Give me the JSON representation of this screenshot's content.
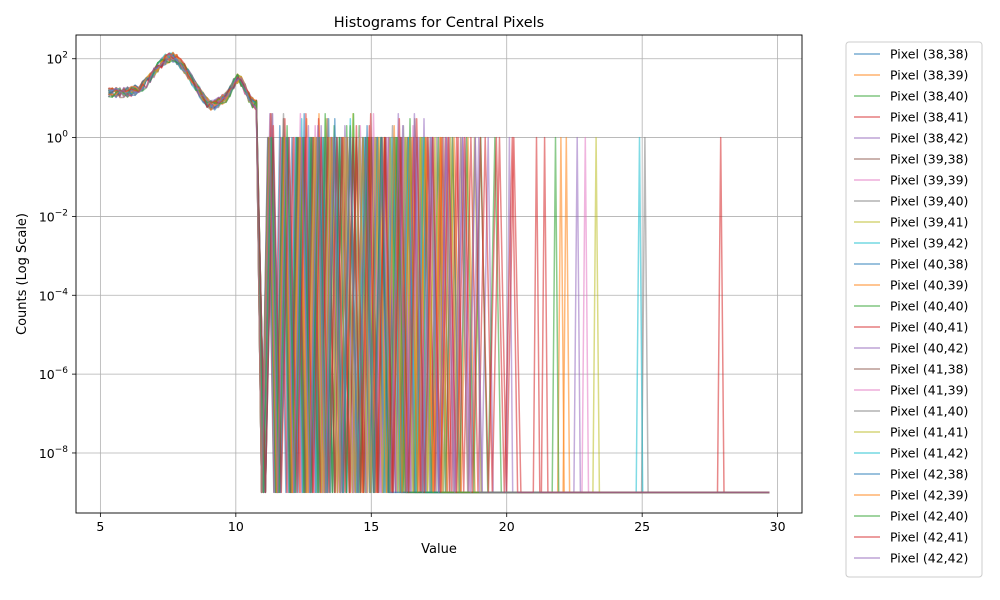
{
  "chart_data": {
    "type": "line",
    "title": "Histograms for Central Pixels",
    "xlabel": "Value",
    "ylabel": "Counts (Log Scale)",
    "xlim": [
      4.1,
      30.9
    ],
    "ylim": [
      3e-10,
      400
    ],
    "yscale": "log",
    "grid": true,
    "legend_position": "outside-right",
    "xticks": [
      {
        "v": 5,
        "label": "5"
      },
      {
        "v": 10,
        "label": "10"
      },
      {
        "v": 15,
        "label": "15"
      },
      {
        "v": 20,
        "label": "20"
      },
      {
        "v": 25,
        "label": "25"
      },
      {
        "v": 30,
        "label": "30"
      }
    ],
    "yticks": [
      {
        "v": 100,
        "base": "10",
        "exp": "2"
      },
      {
        "v": 1,
        "base": "10",
        "exp": "0"
      },
      {
        "v": 0.01,
        "base": "10",
        "exp": "−2"
      },
      {
        "v": 0.0001,
        "base": "10",
        "exp": "−4"
      },
      {
        "v": 1e-06,
        "base": "10",
        "exp": "−6"
      },
      {
        "v": 1e-08,
        "base": "10",
        "exp": "−8"
      }
    ],
    "floor_value": 1e-09,
    "series": [
      {
        "name": "Pixel (38,38)",
        "color": "#1f77b4",
        "max_x": 17.4,
        "outlier_x": null
      },
      {
        "name": "Pixel (38,39)",
        "color": "#ff7f0e",
        "max_x": 16.3,
        "outlier_x": 22.0
      },
      {
        "name": "Pixel (38,40)",
        "color": "#2ca02c",
        "max_x": 16.9,
        "outlier_x": 21.8
      },
      {
        "name": "Pixel (38,41)",
        "color": "#d62728",
        "max_x": 18.3,
        "outlier_x": 21.4
      },
      {
        "name": "Pixel (38,42)",
        "color": "#9467bd",
        "max_x": 19.5,
        "outlier_x": 20.1
      },
      {
        "name": "Pixel (39,38)",
        "color": "#8c564b",
        "max_x": 17.8,
        "outlier_x": null
      },
      {
        "name": "Pixel (39,39)",
        "color": "#e377c2",
        "max_x": 18.6,
        "outlier_x": 22.9
      },
      {
        "name": "Pixel (39,40)",
        "color": "#7f7f7f",
        "max_x": 18.0,
        "outlier_x": 25.1
      },
      {
        "name": "Pixel (39,41)",
        "color": "#bcbd22",
        "max_x": 19.3,
        "outlier_x": 23.3
      },
      {
        "name": "Pixel (39,42)",
        "color": "#17becf",
        "max_x": 17.5,
        "outlier_x": 24.9
      },
      {
        "name": "Pixel (40,38)",
        "color": "#1f77b4",
        "max_x": 16.6,
        "outlier_x": null
      },
      {
        "name": "Pixel (40,39)",
        "color": "#ff7f0e",
        "max_x": 18.9,
        "outlier_x": 22.2
      },
      {
        "name": "Pixel (40,40)",
        "color": "#2ca02c",
        "max_x": 19.8,
        "outlier_x": null
      },
      {
        "name": "Pixel (40,41)",
        "color": "#d62728",
        "max_x": 20.7,
        "outlier_x": 27.9
      },
      {
        "name": "Pixel (40,42)",
        "color": "#9467bd",
        "max_x": 19.1,
        "outlier_x": 22.6
      },
      {
        "name": "Pixel (41,38)",
        "color": "#8c564b",
        "max_x": 16.1,
        "outlier_x": null
      },
      {
        "name": "Pixel (41,39)",
        "color": "#e377c2",
        "max_x": 18.1,
        "outlier_x": null
      },
      {
        "name": "Pixel (41,40)",
        "color": "#7f7f7f",
        "max_x": 17.2,
        "outlier_x": null
      },
      {
        "name": "Pixel (41,41)",
        "color": "#bcbd22",
        "max_x": 18.4,
        "outlier_x": null
      },
      {
        "name": "Pixel (41,42)",
        "color": "#17becf",
        "max_x": 17.0,
        "outlier_x": null
      },
      {
        "name": "Pixel (42,38)",
        "color": "#1f77b4",
        "max_x": 15.8,
        "outlier_x": null
      },
      {
        "name": "Pixel (42,39)",
        "color": "#ff7f0e",
        "max_x": 17.6,
        "outlier_x": null
      },
      {
        "name": "Pixel (42,40)",
        "color": "#2ca02c",
        "max_x": 16.4,
        "outlier_x": null
      },
      {
        "name": "Pixel (42,41)",
        "color": "#d62728",
        "max_x": 20.4,
        "outlier_x": 21.1
      },
      {
        "name": "Pixel (42,42)",
        "color": "#9467bd",
        "max_x": 19.0,
        "outlier_x": null
      }
    ]
  }
}
